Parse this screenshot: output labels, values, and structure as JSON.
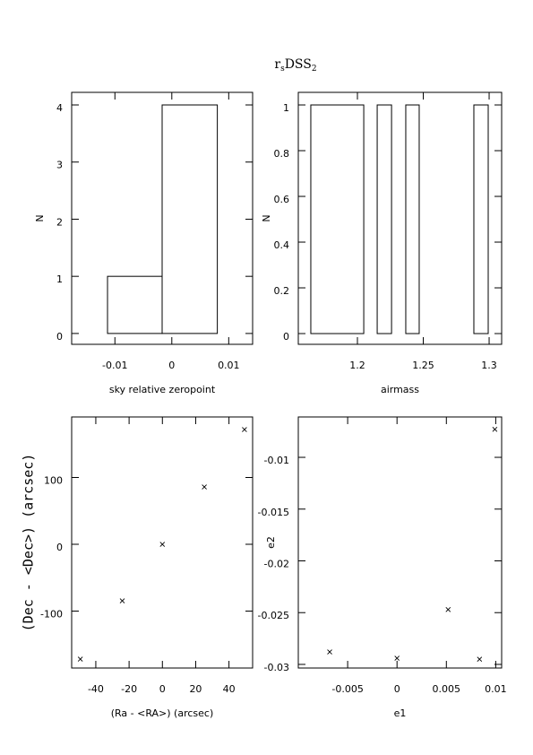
{
  "title": [
    {
      "text": "r"
    },
    {
      "text": "s",
      "sub": true
    },
    {
      "text": "DSS"
    },
    {
      "text": "2",
      "sub": true
    }
  ],
  "chart_data": [
    {
      "type": "histogram",
      "xlabel": "sky relative zeropoint",
      "ylabel": "N",
      "bins": [
        -0.0176,
        -0.0113,
        -0.0017,
        0.008,
        0.0142
      ],
      "counts": [
        0,
        1,
        4,
        0
      ],
      "color": "#000000",
      "xlim": [
        -0.0176,
        0.0142
      ],
      "xticks": [
        -0.01,
        0,
        0.01
      ],
      "ylim": [
        -0.19,
        4.22
      ],
      "yticks": [
        0,
        1,
        2,
        3,
        4
      ]
    },
    {
      "type": "histogram",
      "xlabel": "airmass",
      "ylabel": "N",
      "bins": [
        1.1551,
        1.1646,
        1.2048,
        1.215,
        1.2259,
        1.2367,
        1.2469,
        1.2884,
        1.2993,
        1.3095
      ],
      "counts": [
        0,
        1,
        0,
        1,
        0,
        1,
        0,
        1,
        0
      ],
      "color": "#000000",
      "xlim": [
        1.1551,
        1.3095
      ],
      "xticks": [
        1.2,
        1.25,
        1.3
      ],
      "ylim": [
        -0.047,
        1.055
      ],
      "yticks": [
        0,
        0.2,
        0.4,
        0.6,
        0.8,
        1
      ]
    },
    {
      "type": "scatter",
      "xlabel": "(Ra - <RA>) (arcsec)",
      "ylabel": "(Dec - <Dec>) (arcsec)",
      "x": [
        -49.3,
        -24.1,
        0,
        25.2,
        49.3
      ],
      "values": [
        -171.8,
        -84.6,
        0,
        85.9,
        171.8
      ],
      "color": "#000000",
      "xlim": [
        -54.5,
        54.2
      ],
      "xticks": [
        -40,
        -20,
        0,
        20,
        40
      ],
      "ylim": [
        -185.2,
        190.6
      ],
      "yticks": [
        -100,
        0,
        100
      ]
    },
    {
      "type": "scatter",
      "xlabel": "e1",
      "ylabel": "e2",
      "x": [
        -0.00682,
        0,
        0.00518,
        0.00836,
        0.00991
      ],
      "values": [
        -0.0288,
        -0.0294,
        -0.0247,
        -0.0295,
        -0.0073
      ],
      "color": "#000000",
      "xlim": [
        -0.01,
        0.0106
      ],
      "xticks": [
        -0.005,
        0,
        0.005,
        0.01
      ],
      "ylim": [
        -0.03035,
        -0.0061
      ],
      "yticks": [
        -0.03,
        -0.025,
        -0.02,
        -0.015,
        -0.01
      ]
    }
  ]
}
